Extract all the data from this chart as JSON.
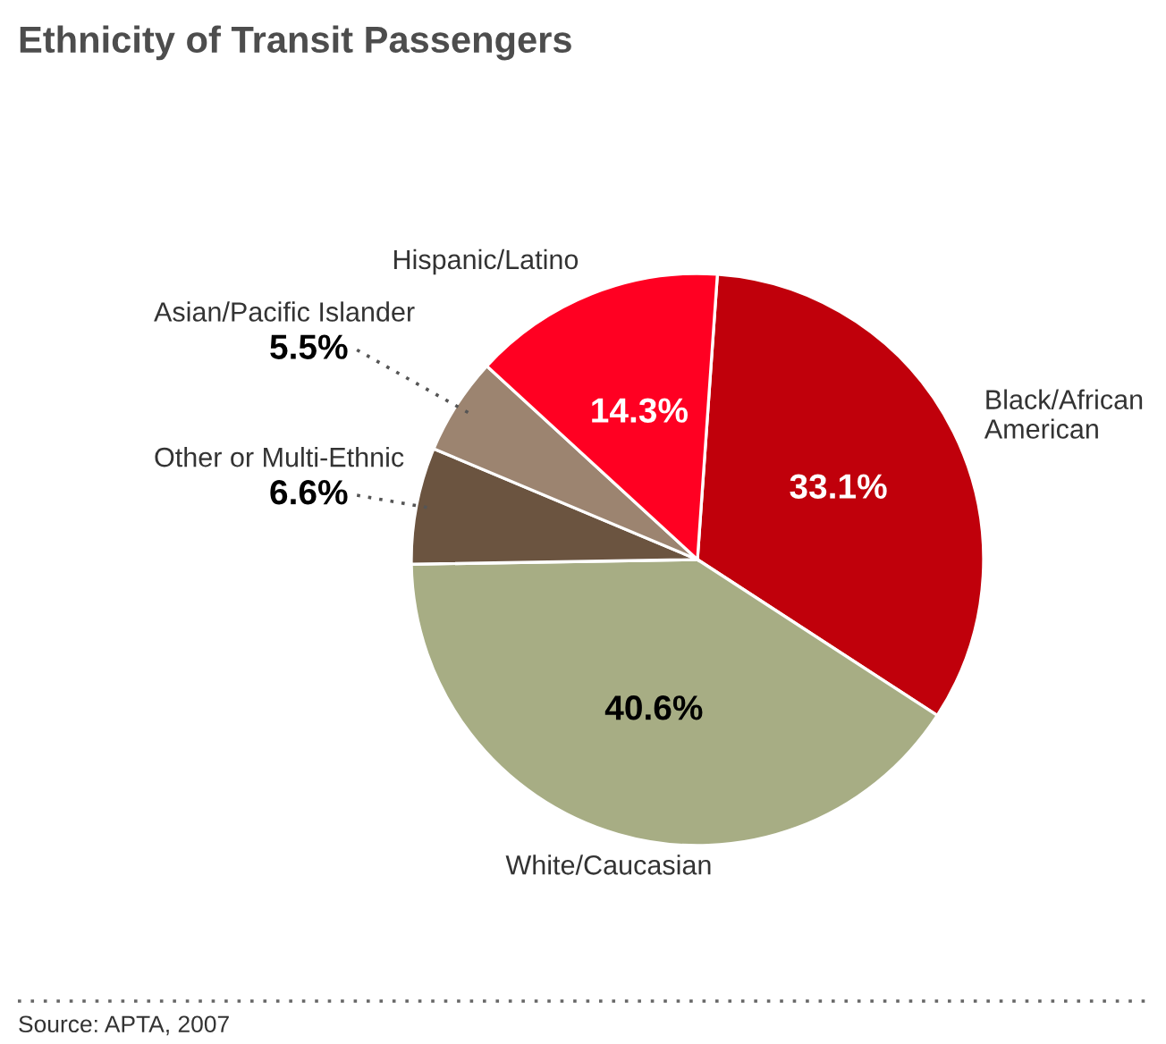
{
  "chart_data": {
    "type": "pie",
    "title": "Ethnicity of Transit Passengers",
    "categories": [
      "Black/African American",
      "White/Caucasian",
      "Other or Multi-Ethnic",
      "Asian/Pacific Islander",
      "Hispanic/Latino"
    ],
    "values": [
      33.1,
      40.6,
      6.6,
      5.5,
      14.3
    ],
    "colors": [
      "#c0000b",
      "#a7ad84",
      "#6b5440",
      "#9c8470",
      "#ff0022"
    ],
    "value_labels": [
      "33.1%",
      "40.6%",
      "6.6%",
      "5.5%",
      "14.3%"
    ],
    "annotations": [
      "Source: APTA, 2007"
    ]
  }
}
